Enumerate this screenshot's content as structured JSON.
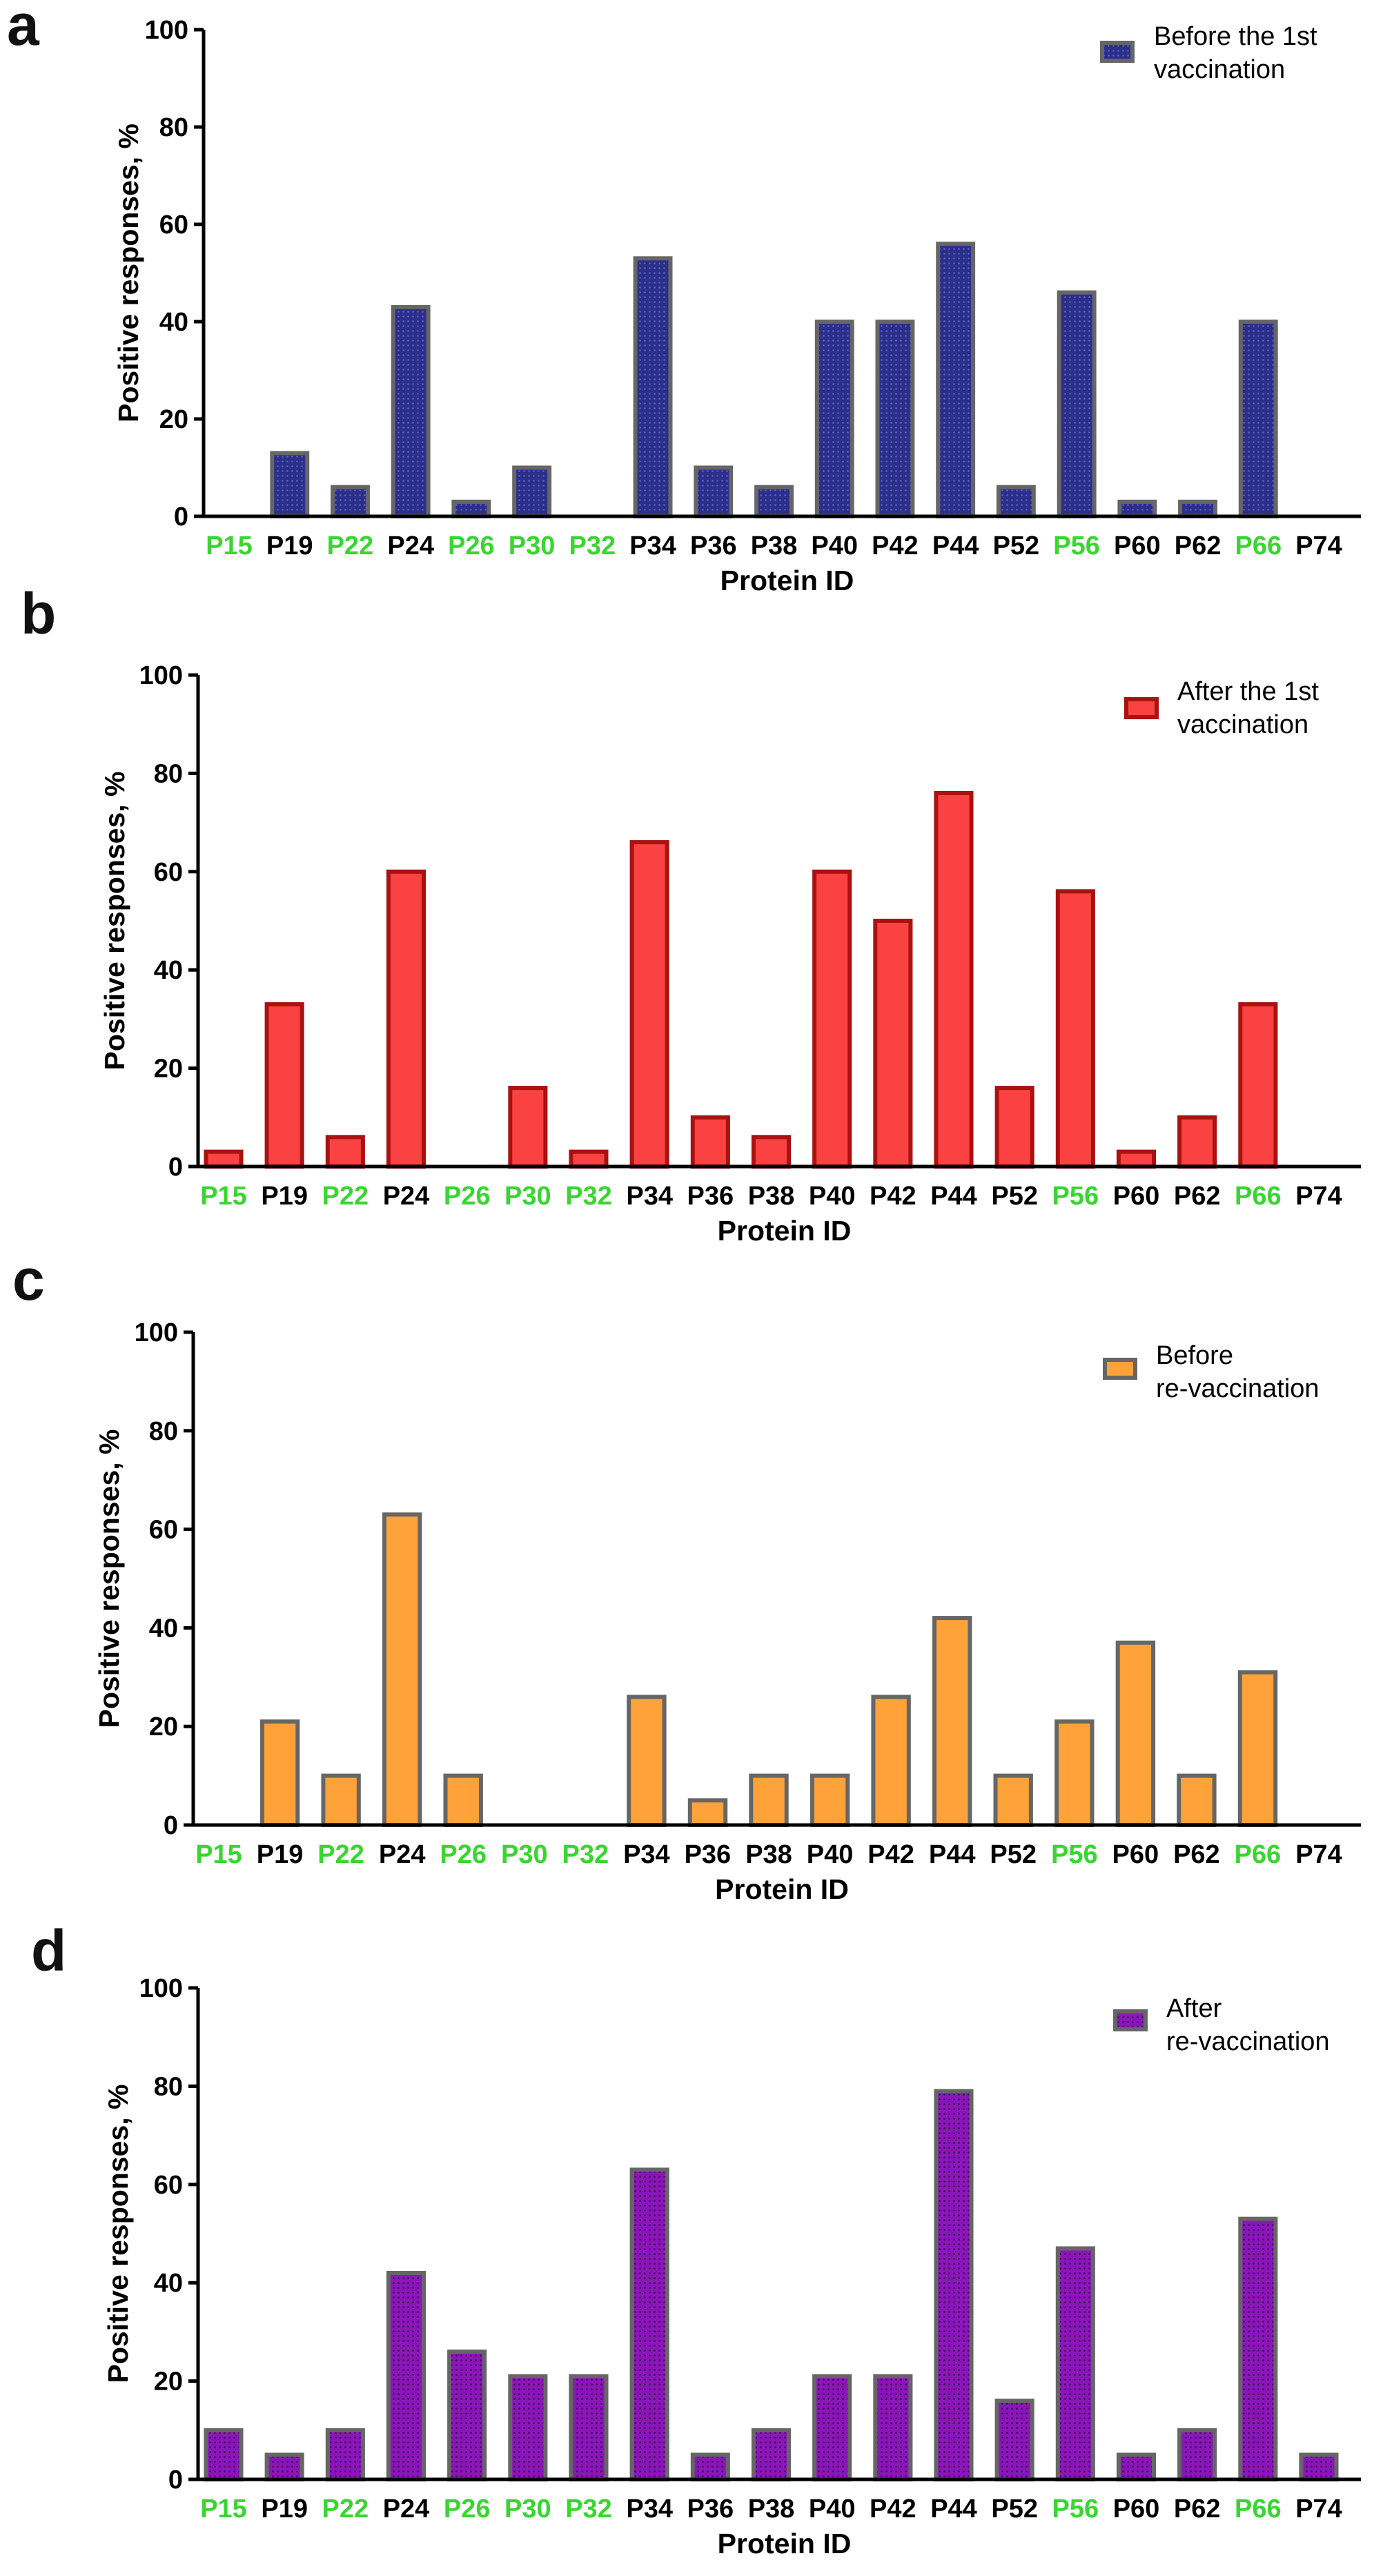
{
  "chart_data": [
    {
      "panel": "a",
      "type": "bar",
      "categories": [
        "P15",
        "P19",
        "P22",
        "P24",
        "P26",
        "P30",
        "P32",
        "P34",
        "P36",
        "P38",
        "P40",
        "P42",
        "P44",
        "P52",
        "P56",
        "P60",
        "P62",
        "P66",
        "P74"
      ],
      "highlighted_categories": [
        "P15",
        "P22",
        "P26",
        "P30",
        "P32",
        "P56",
        "P66"
      ],
      "values": [
        0,
        13,
        6,
        43,
        3,
        10,
        0,
        53,
        10,
        6,
        40,
        40,
        56,
        6,
        46,
        3,
        3,
        40,
        0
      ],
      "legend": [
        "Before the 1st",
        "vaccination"
      ],
      "xlabel": "Protein ID",
      "ylabel": "Positive responses, %",
      "ylim": [
        0,
        100
      ],
      "yticks": [
        0,
        20,
        40,
        60,
        80,
        100
      ],
      "fill_color": "#2b2f8a",
      "edge_color": "#666666",
      "pattern": "dotted"
    },
    {
      "panel": "b",
      "type": "bar",
      "categories": [
        "P15",
        "P19",
        "P22",
        "P24",
        "P26",
        "P30",
        "P32",
        "P34",
        "P36",
        "P38",
        "P40",
        "P42",
        "P44",
        "P52",
        "P56",
        "P60",
        "P62",
        "P66",
        "P74"
      ],
      "highlighted_categories": [
        "P15",
        "P22",
        "P26",
        "P30",
        "P32",
        "P56",
        "P66"
      ],
      "values": [
        3,
        33,
        6,
        60,
        0,
        16,
        3,
        66,
        10,
        6,
        60,
        50,
        76,
        16,
        56,
        3,
        10,
        33,
        0
      ],
      "legend": [
        "After the 1st",
        "vaccination"
      ],
      "xlabel": "Protein ID",
      "ylabel": "Positive responses, %",
      "ylim": [
        0,
        100
      ],
      "yticks": [
        0,
        20,
        40,
        60,
        80,
        100
      ],
      "fill_color": "#fa4242",
      "edge_color": "#aa1111",
      "pattern": "none"
    },
    {
      "panel": "c",
      "type": "bar",
      "categories": [
        "P15",
        "P19",
        "P22",
        "P24",
        "P26",
        "P30",
        "P32",
        "P34",
        "P36",
        "P38",
        "P40",
        "P42",
        "P44",
        "P52",
        "P56",
        "P60",
        "P62",
        "P66",
        "P74"
      ],
      "highlighted_categories": [
        "P15",
        "P22",
        "P26",
        "P30",
        "P32",
        "P56",
        "P66"
      ],
      "values": [
        0,
        21,
        10,
        63,
        10,
        0,
        0,
        26,
        5,
        10,
        10,
        26,
        42,
        10,
        21,
        37,
        10,
        31,
        0
      ],
      "legend": [
        "Before",
        "re-vaccination"
      ],
      "xlabel": "Protein ID",
      "ylabel": "Positive responses, %",
      "ylim": [
        0,
        100
      ],
      "yticks": [
        0,
        20,
        40,
        60,
        80,
        100
      ],
      "fill_color": "#ffa23a",
      "edge_color": "#666666",
      "pattern": "none"
    },
    {
      "panel": "d",
      "type": "bar",
      "categories": [
        "P15",
        "P19",
        "P22",
        "P24",
        "P26",
        "P30",
        "P32",
        "P34",
        "P36",
        "P38",
        "P40",
        "P42",
        "P44",
        "P52",
        "P56",
        "P60",
        "P62",
        "P66",
        "P74"
      ],
      "highlighted_categories": [
        "P15",
        "P22",
        "P26",
        "P30",
        "P32",
        "P56",
        "P66"
      ],
      "values": [
        10,
        5,
        10,
        42,
        26,
        21,
        21,
        63,
        5,
        10,
        21,
        21,
        79,
        16,
        47,
        5,
        10,
        53,
        5
      ],
      "legend": [
        "After",
        "re-vaccination"
      ],
      "xlabel": "Protein ID",
      "ylabel": "Positive responses, %",
      "ylim": [
        0,
        100
      ],
      "yticks": [
        0,
        20,
        40,
        60,
        80,
        100
      ],
      "fill_color": "#8a16b8",
      "edge_color": "#666666",
      "pattern": "dotted"
    }
  ],
  "colors": {
    "highlight_label": "#39d631",
    "normal_label": "#000000",
    "axis": "#000000"
  }
}
